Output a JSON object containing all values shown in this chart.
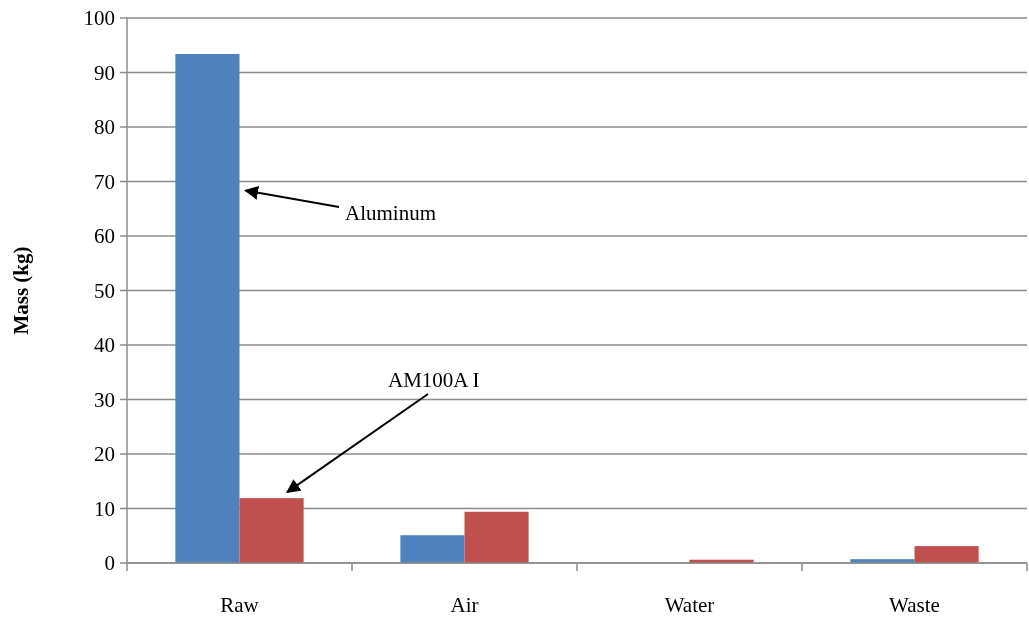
{
  "chart_data": {
    "type": "bar",
    "ylabel": "Mass (kg)",
    "categories": [
      "Raw",
      "Air",
      "Water",
      "Waste"
    ],
    "series": [
      {
        "name": "Aluminum",
        "color": "#4f81bd",
        "values": [
          93.4,
          5.1,
          0,
          0.7
        ]
      },
      {
        "name": "AM100A I",
        "color": "#c0504d",
        "values": [
          11.9,
          9.4,
          0.6,
          3.1
        ]
      }
    ],
    "ylim": [
      0,
      100
    ],
    "yticks": [
      0,
      10,
      20,
      30,
      40,
      50,
      60,
      70,
      80,
      90,
      100
    ],
    "grid": "y"
  }
}
